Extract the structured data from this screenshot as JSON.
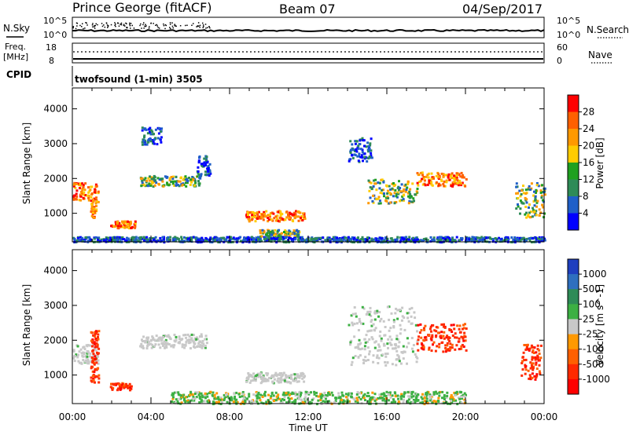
{
  "header": {
    "title": "Prince George (fitACF)",
    "beam": "Beam 07",
    "date": "04/Sep/2017"
  },
  "strips": {
    "nsky_label": "N.Sky",
    "nsearch_label": "N.Search",
    "nsky_top": "10^5",
    "nsky_bottom": "10^0",
    "nsearch_top": "10^5",
    "nsearch_bottom": "10^0",
    "freq_label_1": "Freq.",
    "freq_label_2": "[MHz]",
    "freq_top": "18",
    "freq_bottom": "8",
    "nave_label": "Nave",
    "nave_top": "60",
    "nave_bottom": "0",
    "cpid_label": "CPID",
    "cpid_text": "twofsound (1-min) 3505"
  },
  "chart_data": [
    {
      "type": "heatmap",
      "name": "power",
      "ylabel": "Slant Range [km]",
      "xlabel": "",
      "xlim_hours": [
        0,
        24
      ],
      "ylim": [
        180,
        4600
      ],
      "yticks": [
        1000,
        2000,
        3000,
        4000
      ],
      "color_scale": {
        "label": "Power [dB]",
        "ticks": [
          "28",
          "24",
          "20",
          "16",
          "12",
          "8",
          "4"
        ],
        "colors": [
          "#ff0000",
          "#ff6000",
          "#ff9900",
          "#ffcc00",
          "#1fa01f",
          "#2e8b57",
          "#1f5fc8",
          "#0000ff"
        ]
      },
      "regions": [
        {
          "t": [
            0.0,
            1.3
          ],
          "r": [
            1350,
            1900
          ],
          "level": "high"
        },
        {
          "t": [
            0.9,
            1.2
          ],
          "r": [
            900,
            1500
          ],
          "level": "high"
        },
        {
          "t": [
            1.9,
            3.2
          ],
          "r": [
            600,
            800
          ],
          "level": "high"
        },
        {
          "t": [
            3.4,
            6.5
          ],
          "r": [
            1800,
            2100
          ],
          "level": "mid"
        },
        {
          "t": [
            6.3,
            7.0
          ],
          "r": [
            2100,
            2700
          ],
          "level": "low"
        },
        {
          "t": [
            3.5,
            4.5
          ],
          "r": [
            3000,
            3500
          ],
          "level": "low"
        },
        {
          "t": [
            8.8,
            11.8
          ],
          "r": [
            800,
            1100
          ],
          "level": "high"
        },
        {
          "t": [
            9.5,
            11.5
          ],
          "r": [
            350,
            550
          ],
          "level": "mid"
        },
        {
          "t": [
            14.0,
            15.2
          ],
          "r": [
            2500,
            3200
          ],
          "level": "low"
        },
        {
          "t": [
            15.0,
            17.5
          ],
          "r": [
            1300,
            2000
          ],
          "level": "mid"
        },
        {
          "t": [
            17.5,
            20.0
          ],
          "r": [
            1800,
            2200
          ],
          "level": "high"
        },
        {
          "t": [
            22.5,
            24.0
          ],
          "r": [
            900,
            1900
          ],
          "level": "mid"
        },
        {
          "t": [
            0.0,
            24.0
          ],
          "r": [
            200,
            350
          ],
          "level": "low"
        }
      ]
    },
    {
      "type": "heatmap",
      "name": "velocity",
      "ylabel": "Slant Range [km]",
      "xlabel": "Time UT",
      "xlim_hours": [
        0,
        24
      ],
      "xticks": [
        "00:00",
        "04:00",
        "08:00",
        "12:00",
        "16:00",
        "20:00",
        "00:00"
      ],
      "ylim": [
        180,
        4600
      ],
      "yticks": [
        1000,
        2000,
        3000,
        4000
      ],
      "color_scale": {
        "label": "Velocity [m s^-1]",
        "ticks": [
          "1000",
          "500",
          "100",
          "25",
          "-25",
          "-100",
          "-500",
          "-1000"
        ],
        "colors": [
          "#1f3fbf",
          "#2e6fbf",
          "#2e8b57",
          "#3cb043",
          "#c8c8c8",
          "#ff9900",
          "#ff6000",
          "#ff2a00",
          "#ff0000"
        ]
      },
      "regions": [
        {
          "t": [
            0.0,
            1.3
          ],
          "r": [
            1350,
            1900
          ],
          "level": "gray"
        },
        {
          "t": [
            0.9,
            1.3
          ],
          "r": [
            800,
            2300
          ],
          "level": "neg"
        },
        {
          "t": [
            1.9,
            3.0
          ],
          "r": [
            600,
            800
          ],
          "level": "neg"
        },
        {
          "t": [
            3.4,
            6.8
          ],
          "r": [
            1800,
            2200
          ],
          "level": "gray"
        },
        {
          "t": [
            8.8,
            11.8
          ],
          "r": [
            800,
            1100
          ],
          "level": "gray"
        },
        {
          "t": [
            5.0,
            20.0
          ],
          "r": [
            200,
            550
          ],
          "level": "pos"
        },
        {
          "t": [
            14.0,
            17.5
          ],
          "r": [
            1300,
            3000
          ],
          "level": "gray"
        },
        {
          "t": [
            17.5,
            20.0
          ],
          "r": [
            1700,
            2500
          ],
          "level": "neg"
        },
        {
          "t": [
            22.8,
            23.8
          ],
          "r": [
            900,
            1900
          ],
          "level": "neg"
        }
      ]
    }
  ]
}
